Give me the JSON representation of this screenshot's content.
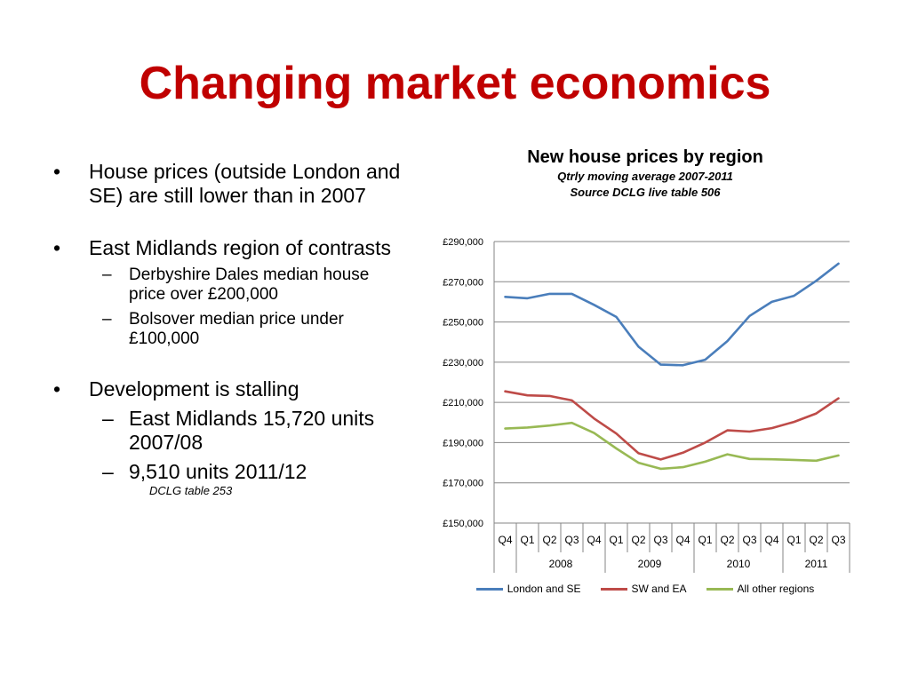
{
  "slide": {
    "title": "Changing market economics"
  },
  "bullets": {
    "b1": "House prices (outside  London and SE) are still lower than in 2007",
    "b2": "East Midlands region of contrasts",
    "b2a": "Derbyshire Dales median house price over £200,000",
    "b2b": "Bolsover median price under £100,000",
    "b3": "Development is stalling",
    "b3a": "East Midlands 15,720 units 2007/08",
    "b3b": "9,510 units 2011/12",
    "b3_note": "DCLG table 253",
    "bullet_char": "•",
    "dash_char": "–"
  },
  "chart_data": {
    "type": "line",
    "title": "New house prices by region",
    "subtitle": "Qtrly moving average 2007-2011",
    "source": "Source DCLG live table 506",
    "categories": [
      "Q4",
      "Q1",
      "Q2",
      "Q3",
      "Q4",
      "Q1",
      "Q2",
      "Q3",
      "Q4",
      "Q1",
      "Q2",
      "Q3",
      "Q4",
      "Q1",
      "Q2",
      "Q3"
    ],
    "groups": [
      {
        "label": "2008",
        "start": 1,
        "end": 4
      },
      {
        "label": "2009",
        "start": 5,
        "end": 8
      },
      {
        "label": "2010",
        "start": 9,
        "end": 12
      },
      {
        "label": "2011",
        "start": 13,
        "end": 15
      }
    ],
    "group_dividers": [
      0,
      1,
      5,
      9,
      13,
      16
    ],
    "ylim": [
      150000,
      290000
    ],
    "yticks": [
      150000,
      170000,
      190000,
      210000,
      230000,
      250000,
      270000,
      290000
    ],
    "ytick_labels": [
      "£150,000",
      "£170,000",
      "£190,000",
      "£210,000",
      "£230,000",
      "£250,000",
      "£270,000",
      "£290,000"
    ],
    "grid": true,
    "legend_position": "bottom",
    "series": [
      {
        "name": "London and SE",
        "color": "#4a7ebb",
        "values": [
          262500,
          261800,
          264000,
          264000,
          258500,
          252500,
          237700,
          228800,
          228500,
          231200,
          240500,
          253000,
          260000,
          263000,
          270500,
          279000
        ]
      },
      {
        "name": "SW and EA",
        "color": "#be4b48",
        "values": [
          215500,
          213500,
          213200,
          211000,
          202000,
          194500,
          184700,
          181600,
          185000,
          190000,
          196100,
          195500,
          197200,
          200300,
          204500,
          212000
        ]
      },
      {
        "name": "All other regions",
        "color": "#98b954",
        "values": [
          197000,
          197500,
          198500,
          199800,
          194800,
          187100,
          180000,
          177000,
          177800,
          180500,
          184200,
          181900,
          181700,
          181400,
          181000,
          183600
        ]
      }
    ]
  }
}
